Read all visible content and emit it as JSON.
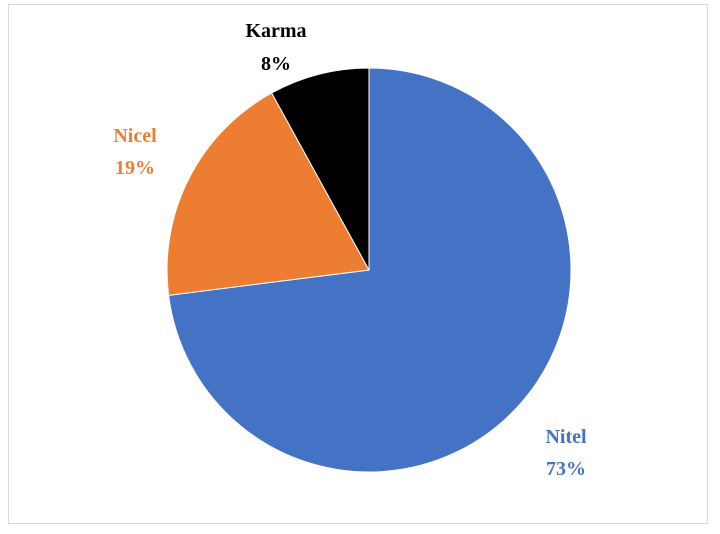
{
  "chart_data": {
    "type": "pie",
    "title": "",
    "slices": [
      {
        "label": "Nitel",
        "value": 73,
        "display": "73%",
        "color": "#4472C4"
      },
      {
        "label": "Nicel",
        "value": 19,
        "display": "19%",
        "color": "#ED7D31"
      },
      {
        "label": "Karma",
        "value": 8,
        "display": "8%",
        "color": "#000000"
      }
    ],
    "start": "12 o'clock",
    "direction": "clockwise",
    "legend": "none",
    "data_labels": "outside"
  }
}
